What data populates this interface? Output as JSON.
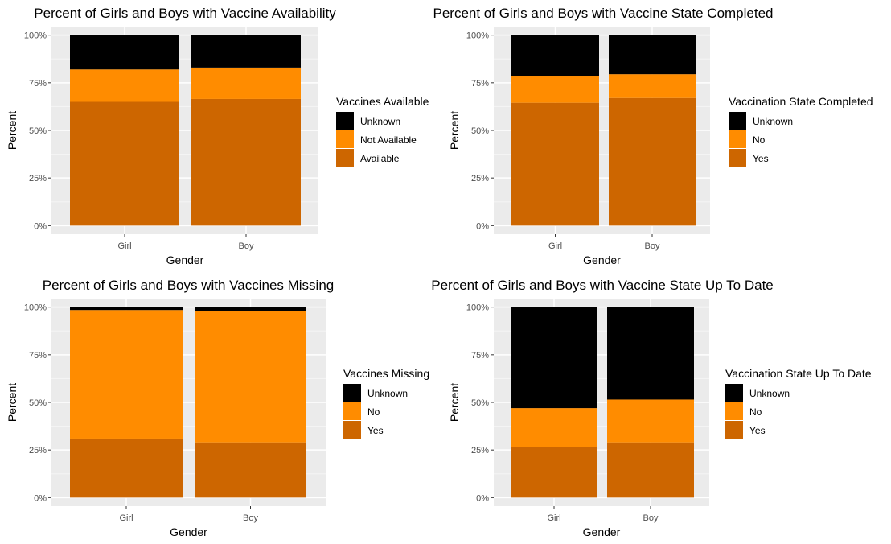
{
  "colors": {
    "unknown": "#000000",
    "no": "#ff8c00",
    "yes": "#cd6600",
    "panel_bg": "#ebebeb",
    "grid_major": "#ffffff",
    "grid_minor": "#f5f5f5"
  },
  "chart_data": [
    {
      "type": "bar",
      "stacked": true,
      "title": "Percent of Girls and Boys with Vaccine Availability",
      "xlabel": "Gender",
      "ylabel": "Percent",
      "categories": [
        "Girl",
        "Boy"
      ],
      "ylim": [
        0,
        1
      ],
      "y_ticks": [
        "0%",
        "25%",
        "50%",
        "75%",
        "100%"
      ],
      "legend_title": "Vaccines Available",
      "legend_position": "right",
      "series": [
        {
          "name": "Available",
          "color": "#cd6600",
          "values": [
            0.65,
            0.665
          ]
        },
        {
          "name": "Not Available",
          "color": "#ff8c00",
          "values": [
            0.17,
            0.165
          ]
        },
        {
          "name": "Unknown",
          "color": "#000000",
          "values": [
            0.18,
            0.17
          ]
        }
      ]
    },
    {
      "type": "bar",
      "stacked": true,
      "title": "Percent of Girls and Boys with Vaccine State Completed",
      "xlabel": "Gender",
      "ylabel": "Percent",
      "categories": [
        "Girl",
        "Boy"
      ],
      "ylim": [
        0,
        1
      ],
      "y_ticks": [
        "0%",
        "25%",
        "50%",
        "75%",
        "100%"
      ],
      "legend_title": "Vaccination State Completed",
      "legend_position": "right",
      "series": [
        {
          "name": "Yes",
          "color": "#cd6600",
          "values": [
            0.645,
            0.67
          ]
        },
        {
          "name": "No",
          "color": "#ff8c00",
          "values": [
            0.14,
            0.125
          ]
        },
        {
          "name": "Unknown",
          "color": "#000000",
          "values": [
            0.215,
            0.205
          ]
        }
      ]
    },
    {
      "type": "bar",
      "stacked": true,
      "title": "Percent of Girls and Boys with Vaccines Missing",
      "xlabel": "Gender",
      "ylabel": "Percent",
      "categories": [
        "Girl",
        "Boy"
      ],
      "ylim": [
        0,
        1
      ],
      "y_ticks": [
        "0%",
        "25%",
        "50%",
        "75%",
        "100%"
      ],
      "legend_title": "Vaccines Missing",
      "legend_position": "right",
      "series": [
        {
          "name": "Yes",
          "color": "#cd6600",
          "values": [
            0.31,
            0.29
          ]
        },
        {
          "name": "No",
          "color": "#ff8c00",
          "values": [
            0.675,
            0.69
          ]
        },
        {
          "name": "Unknown",
          "color": "#000000",
          "values": [
            0.015,
            0.02
          ]
        }
      ]
    },
    {
      "type": "bar",
      "stacked": true,
      "title": "Percent of Girls and Boys with Vaccine State Up To Date",
      "xlabel": "Gender",
      "ylabel": "Percent",
      "categories": [
        "Girl",
        "Boy"
      ],
      "ylim": [
        0,
        1
      ],
      "y_ticks": [
        "0%",
        "25%",
        "50%",
        "75%",
        "100%"
      ],
      "legend_title": "Vaccination State Up To Date",
      "legend_position": "right",
      "series": [
        {
          "name": "Yes",
          "color": "#cd6600",
          "values": [
            0.265,
            0.29
          ]
        },
        {
          "name": "No",
          "color": "#ff8c00",
          "values": [
            0.205,
            0.225
          ]
        },
        {
          "name": "Unknown",
          "color": "#000000",
          "values": [
            0.53,
            0.485
          ]
        }
      ]
    }
  ]
}
